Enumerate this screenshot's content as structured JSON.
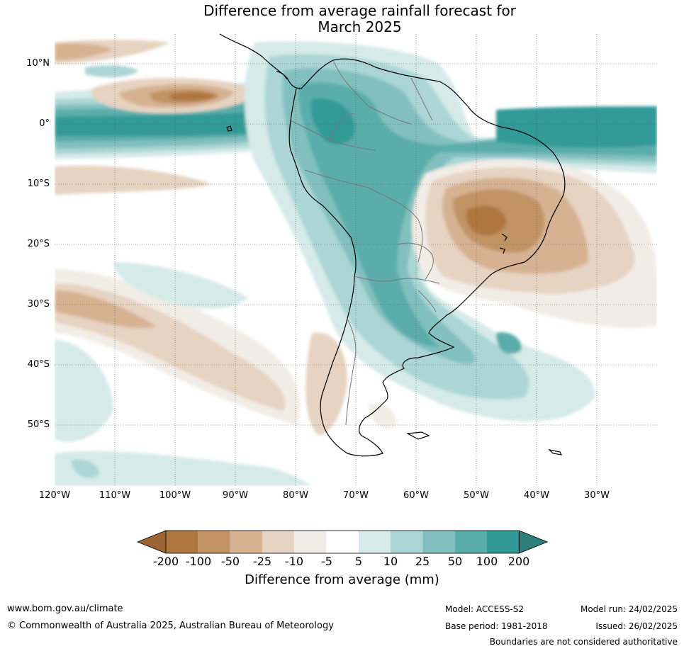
{
  "title_line1": "Difference from average rainfall forecast for",
  "title_line2": "March 2025",
  "lat_labels": [
    "10°N",
    "0°",
    "10°S",
    "20°S",
    "30°S",
    "40°S",
    "50°S"
  ],
  "lon_labels": [
    "120°W",
    "110°W",
    "100°W",
    "90°W",
    "80°W",
    "70°W",
    "60°W",
    "50°W",
    "40°W",
    "30°W"
  ],
  "colorbar": {
    "title": "Difference from average (mm)",
    "ticks": [
      "-200",
      "-100",
      "-50",
      "-25",
      "-10",
      "-5",
      "5",
      "10",
      "25",
      "50",
      "100",
      "200"
    ],
    "colors": [
      "#9b6434",
      "#ae773f",
      "#c29365",
      "#d6b293",
      "#e6d3c1",
      "#f2ece6",
      "#ffffff",
      "#d5eae9",
      "#abd6d5",
      "#82c0bf",
      "#5aadab",
      "#319a97",
      "#2c7e7b"
    ]
  },
  "footer": {
    "website": "www.bom.gov.au/climate",
    "copyright": "© Commonwealth of Australia 2025, Australian Bureau of Meteorology",
    "model": "Model: ACCESS-S2",
    "base_period": "Base period: 1981-2018",
    "model_run": "Model run: 24/02/2025",
    "issued": "Issued: 26/02/2025",
    "disclaimer": "Boundaries are not considered authoritative"
  }
}
